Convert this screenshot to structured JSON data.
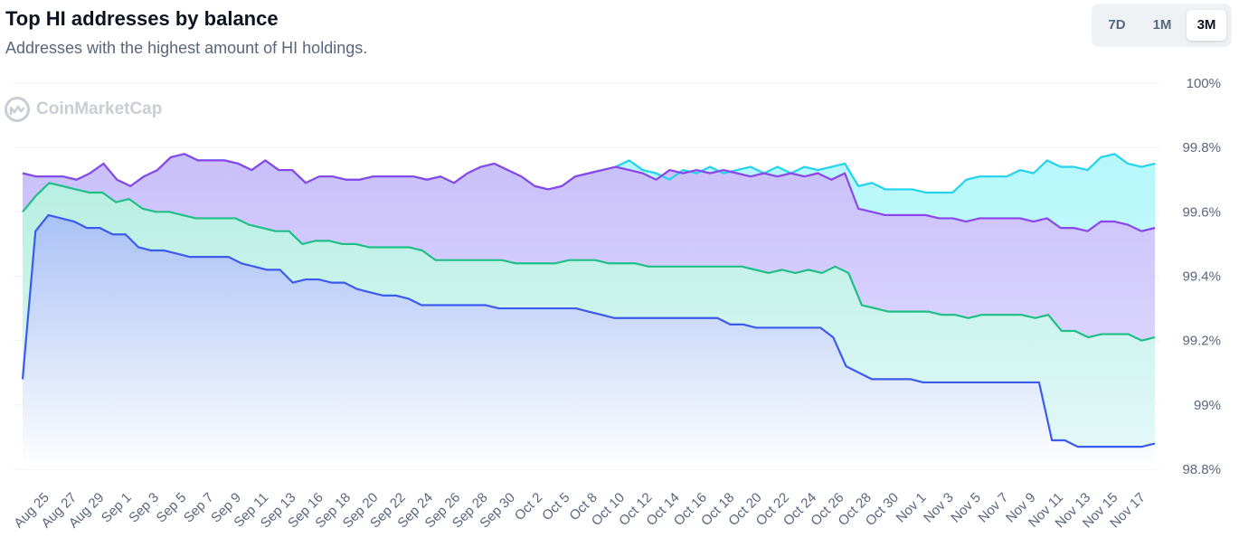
{
  "header": {
    "title": "Top HI addresses by balance",
    "subtitle": "Addresses with the highest amount of HI holdings."
  },
  "range_selector": {
    "options": [
      "7D",
      "1M",
      "3M"
    ],
    "selected": "3M"
  },
  "watermark": {
    "text": "CoinMarketCap",
    "icon": "coinmarketcap-logo-icon"
  },
  "chart_data": {
    "type": "area",
    "title": "Top HI addresses by balance",
    "y_unit": "%",
    "ylim": [
      98.8,
      100
    ],
    "y_ticks": [
      "98.8%",
      "99%",
      "99.2%",
      "99.4%",
      "99.6%",
      "99.8%",
      "100%"
    ],
    "grid": true,
    "x_tick_labels": [
      "Aug 25",
      "Aug 27",
      "Aug 29",
      "Sep 1",
      "Sep 3",
      "Sep 5",
      "Sep 7",
      "Sep 9",
      "Sep 11",
      "Sep 13",
      "Sep 16",
      "Sep 18",
      "Sep 20",
      "Sep 22",
      "Sep 24",
      "Sep 26",
      "Sep 28",
      "Sep 30",
      "Oct 2",
      "Oct 5",
      "Oct 8",
      "Oct 10",
      "Oct 12",
      "Oct 14",
      "Oct 16",
      "Oct 18",
      "Oct 20",
      "Oct 22",
      "Oct 24",
      "Oct 26",
      "Oct 28",
      "Oct 30",
      "Nov 1",
      "Nov 3",
      "Nov 5",
      "Nov 7",
      "Nov 9",
      "Nov 11",
      "Nov 13",
      "Nov 15",
      "Nov 17"
    ],
    "series": [
      {
        "color": "#22d3ee",
        "values": [
          99.72,
          99.71,
          99.71,
          99.71,
          99.7,
          99.72,
          99.75,
          99.7,
          99.68,
          99.71,
          99.73,
          99.77,
          99.78,
          99.76,
          99.76,
          99.76,
          99.75,
          99.73,
          99.76,
          99.73,
          99.73,
          99.69,
          99.71,
          99.71,
          99.7,
          99.7,
          99.71,
          99.71,
          99.71,
          99.71,
          99.7,
          99.71,
          99.69,
          99.72,
          99.74,
          99.75,
          99.73,
          99.71,
          99.68,
          99.67,
          99.68,
          99.71,
          99.72,
          99.73,
          99.74,
          99.76,
          99.73,
          99.72,
          99.7,
          99.73,
          99.72,
          99.74,
          99.72,
          99.73,
          99.74,
          99.72,
          99.74,
          99.72,
          99.74,
          99.73,
          99.74,
          99.75,
          99.68,
          99.69,
          99.67,
          99.67,
          99.67,
          99.66,
          99.66,
          99.66,
          99.7,
          99.71,
          99.71,
          99.71,
          99.73,
          99.72,
          99.76,
          99.74,
          99.74,
          99.73,
          99.77,
          99.78,
          99.75,
          99.74,
          99.75
        ]
      },
      {
        "color": "#8b45e8",
        "values": [
          99.72,
          99.71,
          99.71,
          99.71,
          99.7,
          99.72,
          99.75,
          99.7,
          99.68,
          99.71,
          99.73,
          99.77,
          99.78,
          99.76,
          99.76,
          99.76,
          99.75,
          99.73,
          99.76,
          99.73,
          99.73,
          99.69,
          99.71,
          99.71,
          99.7,
          99.7,
          99.71,
          99.71,
          99.71,
          99.71,
          99.7,
          99.71,
          99.69,
          99.72,
          99.74,
          99.75,
          99.73,
          99.71,
          99.68,
          99.67,
          99.68,
          99.71,
          99.72,
          99.73,
          99.74,
          99.73,
          99.72,
          99.7,
          99.73,
          99.72,
          99.73,
          99.72,
          99.73,
          99.72,
          99.71,
          99.72,
          99.71,
          99.72,
          99.71,
          99.72,
          99.7,
          99.72,
          99.61,
          99.6,
          99.59,
          99.59,
          99.59,
          99.59,
          99.58,
          99.58,
          99.57,
          99.58,
          99.58,
          99.58,
          99.58,
          99.57,
          99.58,
          99.55,
          99.55,
          99.54,
          99.57,
          99.57,
          99.56,
          99.54,
          99.55
        ]
      },
      {
        "color": "#1fbf86",
        "values": [
          99.6,
          99.65,
          99.69,
          99.68,
          99.67,
          99.66,
          99.66,
          99.63,
          99.64,
          99.61,
          99.6,
          99.6,
          99.59,
          99.58,
          99.58,
          99.58,
          99.58,
          99.56,
          99.55,
          99.54,
          99.54,
          99.5,
          99.51,
          99.51,
          99.5,
          99.5,
          99.49,
          99.49,
          99.49,
          99.49,
          99.48,
          99.45,
          99.45,
          99.45,
          99.45,
          99.45,
          99.45,
          99.44,
          99.44,
          99.44,
          99.44,
          99.45,
          99.45,
          99.45,
          99.44,
          99.44,
          99.44,
          99.43,
          99.43,
          99.43,
          99.43,
          99.43,
          99.43,
          99.43,
          99.43,
          99.42,
          99.41,
          99.42,
          99.41,
          99.42,
          99.41,
          99.43,
          99.41,
          99.31,
          99.3,
          99.29,
          99.29,
          99.29,
          99.29,
          99.28,
          99.28,
          99.27,
          99.28,
          99.28,
          99.28,
          99.28,
          99.27,
          99.28,
          99.23,
          99.23,
          99.21,
          99.22,
          99.22,
          99.22,
          99.2,
          99.21
        ]
      },
      {
        "color": "#3b5bea",
        "values": [
          99.08,
          99.54,
          99.59,
          99.58,
          99.57,
          99.55,
          99.55,
          99.53,
          99.53,
          99.49,
          99.48,
          99.48,
          99.47,
          99.46,
          99.46,
          99.46,
          99.46,
          99.44,
          99.43,
          99.42,
          99.42,
          99.38,
          99.39,
          99.39,
          99.38,
          99.38,
          99.36,
          99.35,
          99.34,
          99.34,
          99.33,
          99.31,
          99.31,
          99.31,
          99.31,
          99.31,
          99.31,
          99.3,
          99.3,
          99.3,
          99.3,
          99.3,
          99.3,
          99.3,
          99.29,
          99.28,
          99.27,
          99.27,
          99.27,
          99.27,
          99.27,
          99.27,
          99.27,
          99.27,
          99.27,
          99.25,
          99.25,
          99.24,
          99.24,
          99.24,
          99.24,
          99.24,
          99.24,
          99.21,
          99.12,
          99.1,
          99.08,
          99.08,
          99.08,
          99.08,
          99.07,
          99.07,
          99.07,
          99.07,
          99.07,
          99.07,
          99.07,
          99.07,
          99.07,
          99.07,
          98.89,
          98.89,
          98.87,
          98.87,
          98.87,
          98.87,
          98.87,
          98.87,
          98.88
        ]
      }
    ]
  }
}
